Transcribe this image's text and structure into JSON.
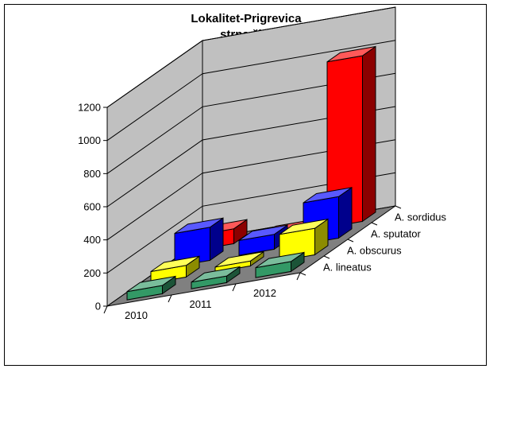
{
  "chart_data": {
    "type": "bar",
    "variant": "3d-grouped",
    "title": [
      "Lokalitet-Prigrevica",
      "strna žita"
    ],
    "categories": [
      "2010",
      "2011",
      "2012"
    ],
    "series": [
      {
        "name": "A. lineatus",
        "color": "#339966",
        "values": [
          50,
          40,
          60
        ]
      },
      {
        "name": "A. obscurus",
        "color": "#ffff00",
        "values": [
          70,
          30,
          160
        ]
      },
      {
        "name": "A. sputator",
        "color": "#0000ff",
        "values": [
          200,
          90,
          250
        ]
      },
      {
        "name": "A. sordidus",
        "color": "#ff0000",
        "values": [
          90,
          20,
          1000
        ]
      }
    ],
    "yticks": [
      0,
      200,
      400,
      600,
      800,
      1000,
      1200
    ],
    "ylim": [
      0,
      1200
    ],
    "grid": true,
    "wall_color": "#c0c0c0",
    "floor_color": "#808080"
  }
}
